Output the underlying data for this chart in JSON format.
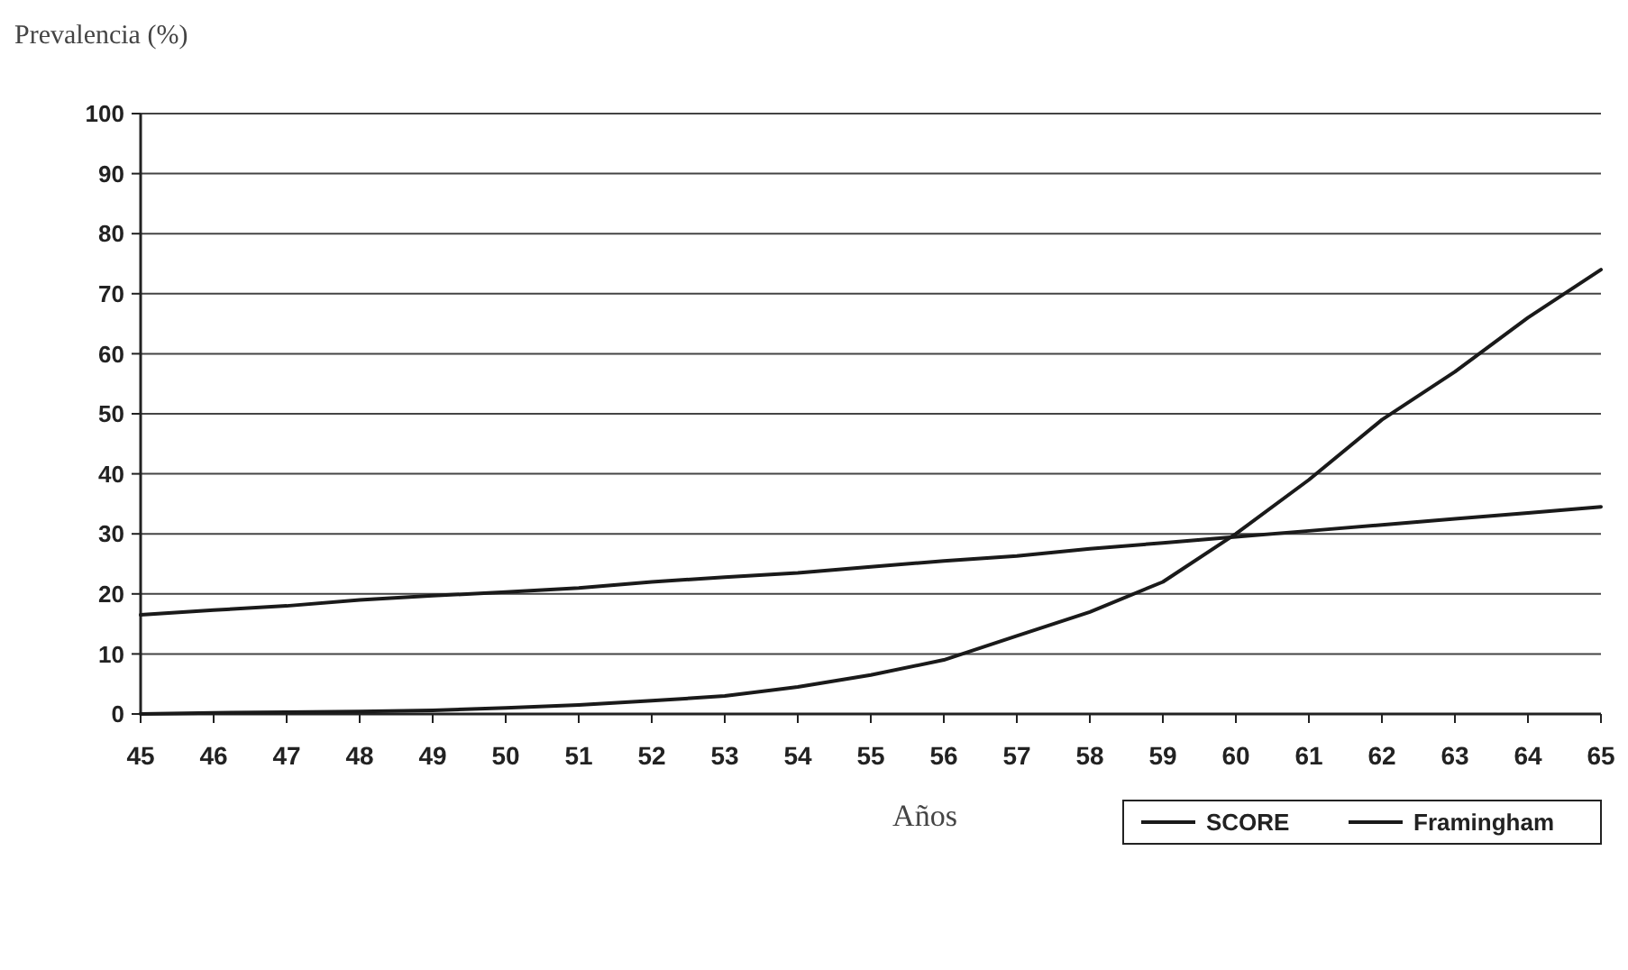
{
  "chart_data": {
    "type": "line",
    "ylabel": "Prevalencia (%)",
    "xlabel": "Años",
    "x": [
      45,
      46,
      47,
      48,
      49,
      50,
      51,
      52,
      53,
      54,
      55,
      56,
      57,
      58,
      59,
      60,
      61,
      62,
      63,
      64,
      65
    ],
    "series": [
      {
        "name": "SCORE",
        "color": "#1a1a1a",
        "values": [
          0,
          0.2,
          0.3,
          0.4,
          0.6,
          1,
          1.5,
          2.2,
          3,
          4.5,
          6.5,
          9,
          13,
          17,
          22,
          30,
          39,
          49,
          57,
          66,
          74
        ]
      },
      {
        "name": "Framingham",
        "color": "#1a1a1a",
        "values": [
          16.5,
          17.3,
          18,
          19,
          19.7,
          20.3,
          21,
          22,
          22.8,
          23.5,
          24.5,
          25.5,
          26.3,
          27.5,
          28.5,
          29.5,
          30.5,
          31.5,
          32.5,
          33.5,
          34.5
        ]
      }
    ],
    "xlim": [
      45,
      65
    ],
    "xticks": [
      45,
      46,
      47,
      48,
      49,
      50,
      51,
      52,
      53,
      54,
      55,
      56,
      57,
      58,
      59,
      60,
      61,
      62,
      63,
      64,
      65
    ],
    "ylim": [
      0,
      100
    ],
    "yticks": [
      0,
      10,
      20,
      30,
      40,
      50,
      60,
      70,
      80,
      90,
      100
    ],
    "grid": "y",
    "legend": "bottom right",
    "marker": "none",
    "line_style": "solid"
  }
}
